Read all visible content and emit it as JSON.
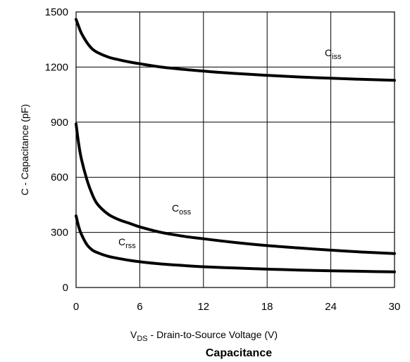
{
  "chart_data": {
    "type": "line",
    "title": "Capacitance",
    "xlabel": {
      "main": "V",
      "sub": "DS",
      "rest": " -   Drain-to-Source Voltage (V)"
    },
    "ylabel": "C  -   Capacitance (pF)",
    "xlim": [
      0,
      30
    ],
    "ylim": [
      0,
      1500
    ],
    "x_ticks": [
      0,
      6,
      12,
      18,
      24,
      30
    ],
    "y_ticks": [
      0,
      300,
      600,
      900,
      1200,
      1500
    ],
    "grid": true,
    "series": [
      {
        "name": {
          "main": "C",
          "sub": "iss"
        },
        "x": [
          0,
          0.25,
          0.5,
          1,
          1.5,
          2,
          3,
          4,
          5,
          6,
          8,
          10,
          12,
          15,
          18,
          21,
          24,
          27,
          30
        ],
        "y": [
          1460,
          1420,
          1385,
          1335,
          1300,
          1280,
          1255,
          1240,
          1228,
          1218,
          1200,
          1188,
          1178,
          1165,
          1155,
          1146,
          1139,
          1133,
          1128
        ]
      },
      {
        "name": {
          "main": "C",
          "sub": "oss"
        },
        "x": [
          0,
          0.25,
          0.5,
          1,
          1.5,
          2,
          3,
          4,
          5,
          6,
          8,
          10,
          12,
          15,
          18,
          21,
          24,
          27,
          30
        ],
        "y": [
          890,
          780,
          700,
          590,
          510,
          455,
          400,
          370,
          350,
          330,
          300,
          280,
          265,
          245,
          228,
          215,
          203,
          193,
          185
        ]
      },
      {
        "name": {
          "main": "C",
          "sub": "rss"
        },
        "x": [
          0,
          0.25,
          0.5,
          1,
          1.5,
          2,
          3,
          4,
          5,
          6,
          8,
          10,
          12,
          15,
          18,
          21,
          24,
          27,
          30
        ],
        "y": [
          390,
          330,
          290,
          235,
          205,
          190,
          170,
          158,
          148,
          140,
          128,
          120,
          113,
          106,
          100,
          95,
          91,
          88,
          85
        ]
      }
    ]
  }
}
